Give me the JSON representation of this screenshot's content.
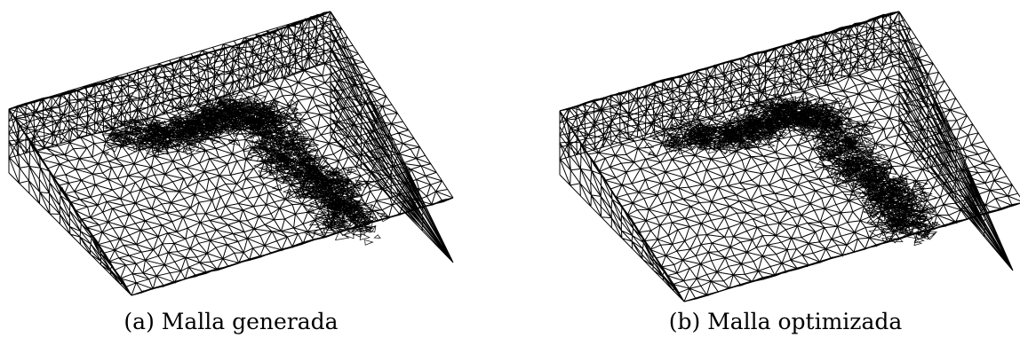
{
  "figure": {
    "panels": [
      {
        "caption": "(a) Malla generada"
      },
      {
        "caption": "(b) Malla optimizada"
      }
    ],
    "line_color": "#000000",
    "background": "#ffffff"
  }
}
